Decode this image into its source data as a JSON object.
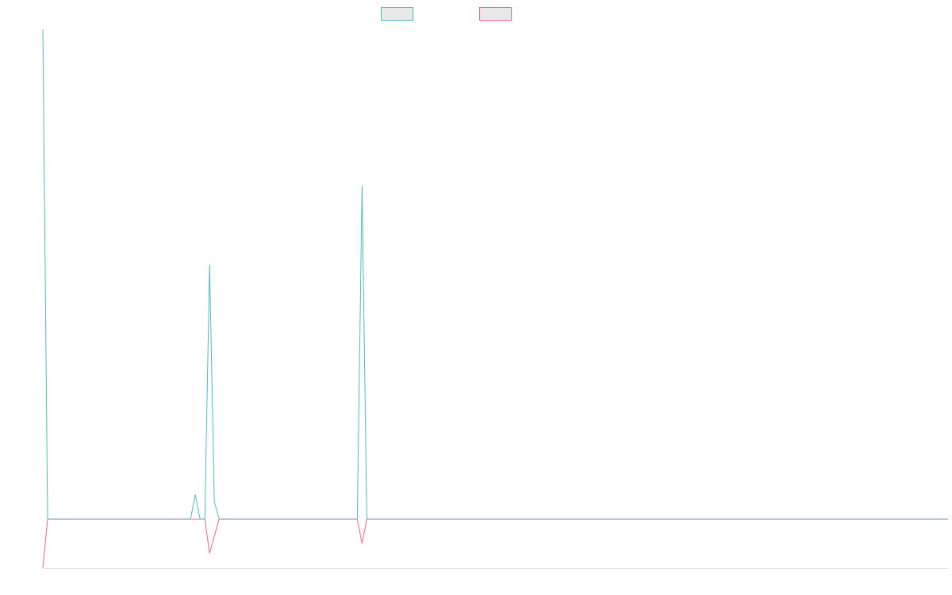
{
  "chart_data": {
    "type": "line",
    "categories": [
      null,
      null,
      null,
      null,
      null,
      null,
      null,
      null,
      null,
      null,
      null,
      null,
      null,
      null,
      null,
      null,
      null,
      null,
      null,
      null,
      null,
      null,
      null,
      null,
      null,
      null,
      null,
      null,
      null,
      null,
      null,
      null,
      null,
      null,
      null,
      null,
      null,
      null,
      null,
      null,
      null,
      null,
      null,
      null,
      null,
      null,
      null,
      null,
      null,
      null,
      null,
      null,
      null,
      null,
      null,
      null,
      null,
      null,
      null,
      null,
      null,
      null,
      null,
      null,
      null,
      null,
      null,
      null,
      null,
      null,
      null,
      null,
      null,
      null,
      null,
      null,
      null,
      null,
      null,
      null,
      null,
      null,
      null,
      null,
      null,
      null,
      null,
      null,
      null,
      null,
      null,
      null,
      null,
      null,
      null,
      null,
      null,
      null,
      null,
      null,
      null,
      null,
      null,
      null,
      null,
      null,
      null,
      null,
      null,
      null,
      null,
      null,
      null,
      null,
      null,
      null,
      null,
      null,
      null,
      null,
      null,
      null,
      null,
      null,
      null,
      null,
      null,
      null,
      null,
      null,
      null,
      null,
      null,
      null,
      null,
      null,
      null,
      null,
      null,
      null,
      null,
      null,
      null,
      null,
      null,
      null,
      null,
      null,
      null,
      null,
      null,
      null,
      null,
      null,
      null,
      null,
      null,
      null,
      null,
      null,
      null,
      null,
      null,
      null,
      null,
      null,
      null,
      null,
      null,
      null,
      null,
      null,
      null,
      null,
      null,
      null,
      null,
      null,
      null,
      null,
      null,
      null,
      null,
      null,
      null,
      null,
      null,
      null,
      null,
      null,
      null
    ],
    "series": [
      {
        "color": "#ff6384",
        "values": [
          -10,
          0,
          0,
          0,
          0,
          0,
          0,
          0,
          0,
          0,
          0,
          0,
          0,
          0,
          0,
          0,
          0,
          0,
          0,
          0,
          0,
          0,
          0,
          0,
          0,
          0,
          0,
          0,
          0,
          0,
          0,
          0,
          0,
          0,
          0,
          -7,
          -3.5,
          0,
          0,
          0,
          0,
          0,
          0,
          0,
          0,
          0,
          0,
          0,
          0,
          0,
          0,
          0,
          0,
          0,
          0,
          0,
          0,
          0,
          0,
          0,
          0,
          0,
          0,
          0,
          0,
          0,
          0,
          -5,
          0,
          0,
          0,
          0,
          0,
          0,
          0,
          0,
          0,
          0,
          0,
          0,
          0,
          0,
          0,
          0,
          0,
          0,
          0,
          0,
          0,
          0,
          0,
          0,
          0,
          0,
          0,
          0,
          0,
          0,
          0,
          0,
          0,
          0,
          0,
          0,
          0,
          0,
          0,
          0,
          0,
          0,
          0,
          0,
          0,
          0,
          0,
          0,
          0,
          0,
          0,
          0,
          0,
          0,
          0,
          0,
          0,
          0,
          0,
          0,
          0,
          0,
          0,
          0,
          0,
          0,
          0,
          0,
          0,
          0,
          0,
          0,
          0,
          0,
          0,
          0,
          0,
          0,
          0,
          0,
          0,
          0,
          0,
          0,
          0,
          0,
          0,
          0,
          0,
          0,
          0,
          0,
          0,
          0,
          0,
          0,
          0,
          0,
          0,
          0,
          0,
          0,
          0,
          0,
          0,
          0,
          0,
          0,
          0,
          0,
          0,
          0,
          0,
          0,
          0,
          0,
          0,
          0,
          0,
          0,
          0,
          0,
          0
        ]
      },
      {
        "color": "#4bc0c0",
        "values": [
          100,
          0,
          0,
          0,
          0,
          0,
          0,
          0,
          0,
          0,
          0,
          0,
          0,
          0,
          0,
          0,
          0,
          0,
          0,
          0,
          0,
          0,
          0,
          0,
          0,
          0,
          0,
          0,
          0,
          0,
          0,
          0,
          5,
          0,
          0,
          52,
          3.5,
          0,
          0,
          0,
          0,
          0,
          0,
          0,
          0,
          0,
          0,
          0,
          0,
          0,
          0,
          0,
          0,
          0,
          0,
          0,
          0,
          0,
          0,
          0,
          0,
          0,
          0,
          0,
          0,
          0,
          0,
          68,
          0,
          0,
          0,
          0,
          0,
          0,
          0,
          0,
          0,
          0,
          0,
          0,
          0,
          0,
          0,
          0,
          0,
          0,
          0,
          0,
          0,
          0,
          0,
          0,
          0,
          0,
          0,
          0,
          0,
          0,
          0,
          0,
          0,
          0,
          0,
          0,
          0,
          0,
          0,
          0,
          0,
          0,
          0,
          0,
          0,
          0,
          0,
          0,
          0,
          0,
          0,
          0,
          0,
          0,
          0,
          0,
          0,
          0,
          0,
          0,
          0,
          0,
          0,
          0,
          0,
          0,
          0,
          0,
          0,
          0,
          0,
          0,
          0,
          0,
          0,
          0,
          0,
          0,
          0,
          0,
          0,
          0,
          0,
          0,
          0,
          0,
          0,
          0,
          0,
          0,
          0,
          0,
          0,
          0,
          0,
          0,
          0,
          0,
          0,
          0,
          0,
          0,
          0,
          0,
          0,
          0,
          0,
          0,
          0,
          0,
          0,
          0,
          0,
          0,
          0,
          0,
          0,
          0,
          0,
          0,
          0,
          0,
          0
        ]
      }
    ],
    "ylim": [
      -10,
      100
    ]
  }
}
